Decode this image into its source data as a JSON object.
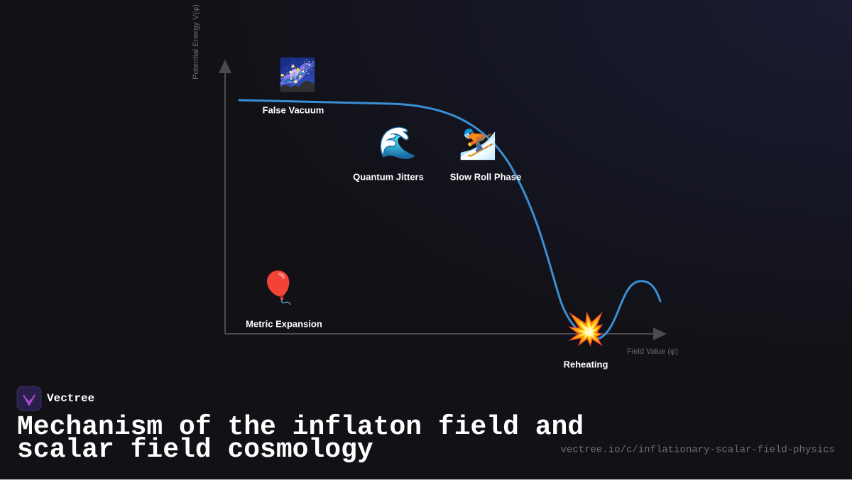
{
  "axes": {
    "y_label": "Potential Energy V(φ)",
    "x_label": "Field Value (φ)"
  },
  "nodes": [
    {
      "icon": "🌌",
      "label": "False Vacuum"
    },
    {
      "icon": "🌊",
      "label": "Quantum Jitters"
    },
    {
      "icon": "⛷️",
      "label": "Slow Roll Phase"
    },
    {
      "icon": "🎈",
      "label": "Metric Expansion"
    },
    {
      "icon": "💥",
      "label": "Reheating"
    }
  ],
  "footer": {
    "brand": "Vectree",
    "title_lines": [
      "Mechanism of the inflaton field and",
      "scalar field cosmology"
    ],
    "url": "vectree.io/c/inflationary-scalar-field-physics"
  }
}
